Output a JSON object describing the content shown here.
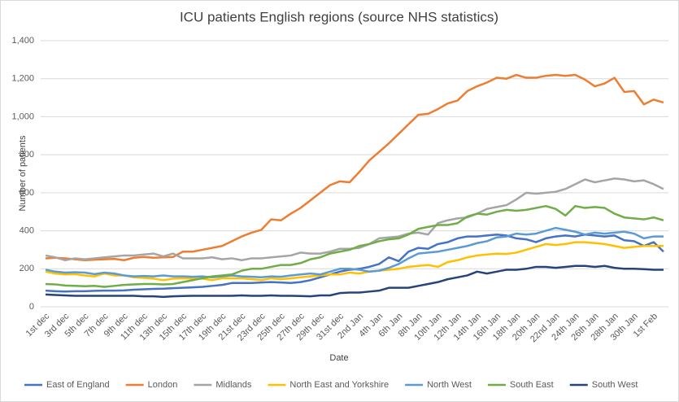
{
  "chart_data": {
    "type": "line",
    "title": "ICU patients English regions (source NHS statistics)",
    "x_label": "Date",
    "y_label": "Number  of  patients",
    "categories": [
      "1st dec",
      null,
      "3rd dec",
      null,
      "5th dec",
      null,
      "7th dec",
      null,
      "9th dec",
      null,
      "11th dec",
      null,
      "13th dec",
      null,
      "15th dec",
      null,
      "17th dec",
      null,
      "19th dec",
      null,
      "21st dec",
      null,
      "23rd dec",
      null,
      "25th dec",
      null,
      "27th dec",
      null,
      "29th dec",
      null,
      "31st dec",
      null,
      "2nd Jan",
      null,
      "4th Jan",
      null,
      "6th Jan",
      null,
      "8th Jan",
      null,
      "10th Jan",
      null,
      "12th Jan",
      null,
      "14th Jan",
      null,
      "16th Jan",
      null,
      "18th Jan",
      null,
      "20th Jan",
      null,
      "22nd Jan",
      null,
      "24th Jan",
      null,
      "26th Jan",
      null,
      "28th Jan",
      null,
      "30th Jan",
      null,
      "1st Feb",
      null
    ],
    "ylim": [
      0,
      1400
    ],
    "yticks": [
      0,
      200,
      400,
      600,
      800,
      {
        "value": 1000,
        "label": "1,000"
      },
      {
        "value": 1200,
        "label": "1,200"
      },
      {
        "value": 1400,
        "label": "1,400"
      }
    ],
    "grid": true,
    "legend": "bottom",
    "series": [
      {
        "name": "East of England",
        "color": "#4472c4",
        "values": [
          85,
          82,
          80,
          82,
          82,
          84,
          85,
          85,
          86,
          90,
          92,
          94,
          95,
          98,
          100,
          102,
          105,
          110,
          115,
          125,
          125,
          125,
          128,
          130,
          128,
          125,
          130,
          140,
          155,
          170,
          185,
          195,
          200,
          210,
          225,
          260,
          240,
          290,
          310,
          305,
          330,
          340,
          360,
          370,
          370,
          375,
          380,
          375,
          360,
          355,
          340,
          360,
          370,
          375,
          370,
          380,
          375,
          370,
          375,
          350,
          345,
          320,
          340,
          290
        ]
      },
      {
        "name": "London",
        "color": "#ed7d31",
        "values": [
          255,
          258,
          255,
          250,
          245,
          248,
          250,
          252,
          245,
          258,
          262,
          258,
          260,
          262,
          290,
          290,
          300,
          310,
          320,
          345,
          370,
          390,
          405,
          460,
          455,
          490,
          520,
          560,
          600,
          640,
          660,
          655,
          710,
          770,
          815,
          860,
          910,
          960,
          1010,
          1015,
          1040,
          1070,
          1085,
          1135,
          1160,
          1180,
          1205,
          1200,
          1220,
          1205,
          1205,
          1215,
          1220,
          1215,
          1220,
          1195,
          1160,
          1175,
          1205,
          1130,
          1135,
          1065,
          1090,
          1075
        ]
      },
      {
        "name": "Midlands",
        "color": "#a5a5a5",
        "values": [
          270,
          260,
          245,
          255,
          250,
          255,
          260,
          265,
          270,
          270,
          275,
          280,
          265,
          280,
          255,
          255,
          255,
          260,
          250,
          255,
          245,
          255,
          255,
          260,
          265,
          270,
          285,
          280,
          280,
          290,
          305,
          305,
          310,
          330,
          360,
          365,
          370,
          385,
          390,
          380,
          440,
          455,
          465,
          470,
          490,
          515,
          525,
          535,
          565,
          600,
          595,
          600,
          605,
          620,
          645,
          670,
          655,
          665,
          675,
          670,
          660,
          665,
          645,
          620
        ]
      },
      {
        "name": "North East and Yorkshire",
        "color": "#ffc000",
        "values": [
          185,
          175,
          170,
          172,
          165,
          160,
          175,
          165,
          165,
          155,
          152,
          148,
          140,
          148,
          150,
          148,
          148,
          140,
          150,
          150,
          150,
          145,
          140,
          150,
          145,
          150,
          155,
          160,
          165,
          170,
          170,
          180,
          175,
          185,
          190,
          195,
          200,
          210,
          215,
          220,
          210,
          235,
          245,
          260,
          270,
          275,
          280,
          278,
          285,
          300,
          315,
          330,
          325,
          330,
          340,
          340,
          335,
          330,
          320,
          310,
          315,
          320,
          320,
          320
        ]
      },
      {
        "name": "North West",
        "color": "#5b9bd5",
        "values": [
          195,
          185,
          180,
          182,
          180,
          172,
          180,
          175,
          165,
          160,
          162,
          160,
          165,
          160,
          160,
          158,
          160,
          155,
          160,
          165,
          160,
          158,
          155,
          160,
          158,
          165,
          170,
          175,
          170,
          185,
          200,
          200,
          195,
          185,
          190,
          205,
          225,
          255,
          280,
          285,
          290,
          300,
          310,
          320,
          335,
          345,
          365,
          370,
          385,
          380,
          385,
          400,
          415,
          405,
          395,
          380,
          390,
          385,
          390,
          395,
          385,
          360,
          370,
          370
        ]
      },
      {
        "name": "South East",
        "color": "#70ad47",
        "values": [
          120,
          118,
          112,
          110,
          108,
          110,
          105,
          110,
          115,
          118,
          120,
          120,
          118,
          120,
          130,
          140,
          150,
          160,
          165,
          170,
          190,
          200,
          200,
          210,
          220,
          220,
          230,
          250,
          260,
          280,
          290,
          300,
          320,
          330,
          345,
          355,
          360,
          380,
          410,
          420,
          430,
          430,
          440,
          475,
          490,
          485,
          500,
          510,
          505,
          510,
          520,
          530,
          515,
          480,
          530,
          520,
          525,
          520,
          490,
          470,
          465,
          460,
          470,
          455
        ]
      },
      {
        "name": "South West",
        "color": "#264478",
        "values": [
          65,
          62,
          60,
          58,
          58,
          58,
          58,
          58,
          58,
          58,
          55,
          55,
          52,
          55,
          57,
          58,
          58,
          58,
          58,
          58,
          60,
          58,
          58,
          60,
          58,
          58,
          57,
          55,
          60,
          60,
          72,
          75,
          75,
          80,
          85,
          100,
          100,
          100,
          110,
          120,
          130,
          145,
          155,
          165,
          185,
          175,
          185,
          195,
          195,
          200,
          210,
          210,
          205,
          210,
          215,
          215,
          210,
          215,
          205,
          200,
          200,
          198,
          195,
          195
        ]
      }
    ]
  }
}
